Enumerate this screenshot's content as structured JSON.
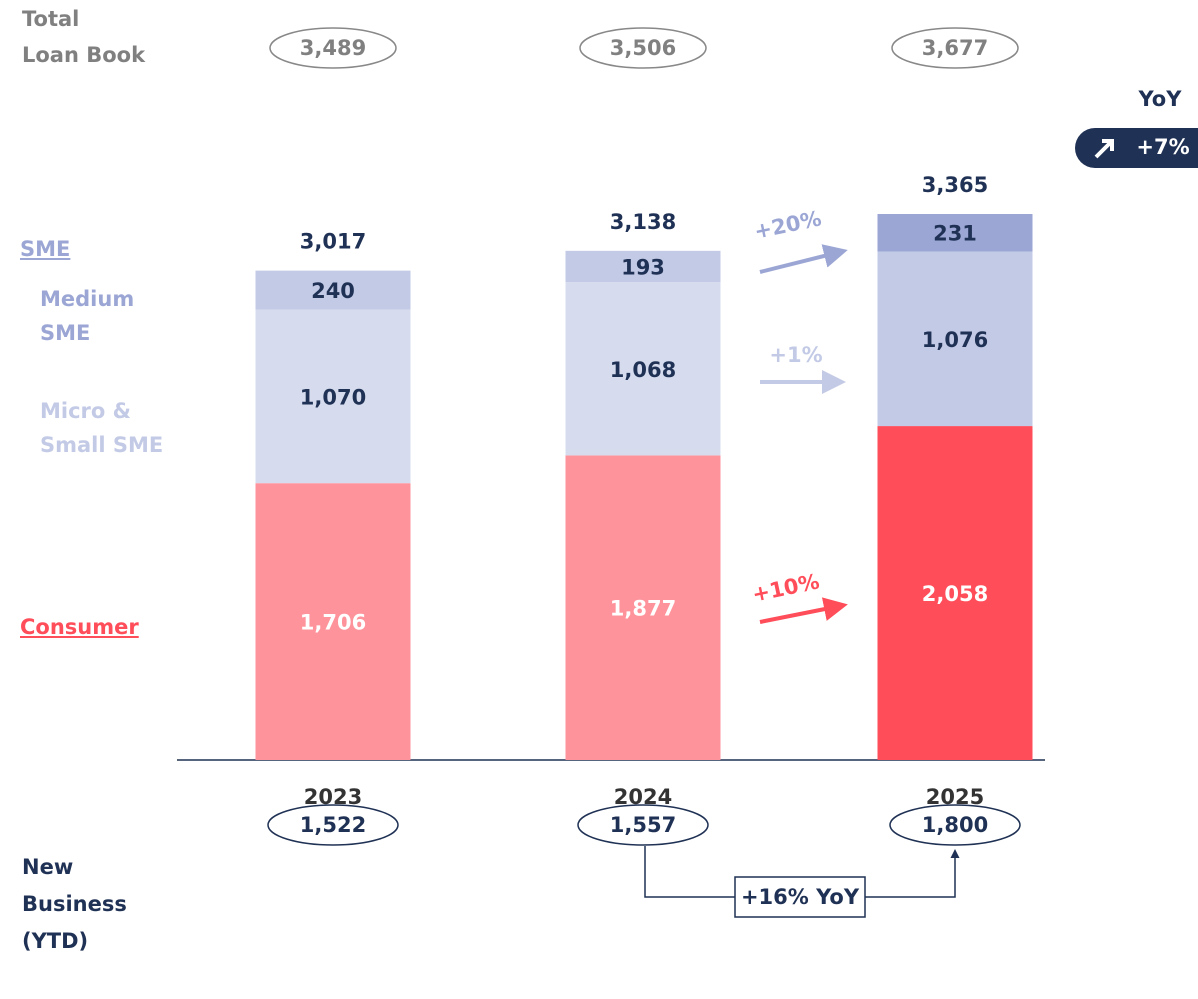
{
  "chart_data": {
    "type": "stacked_bar",
    "categories": [
      "2023",
      "2024",
      "2025"
    ],
    "series": [
      {
        "name": "Consumer",
        "color": "#ff4d5a",
        "colors": [
          "#ff939b",
          "#ff939b",
          "#ff4d5a"
        ],
        "label_color": "#ffffff",
        "values": [
          1706,
          1877,
          2058
        ],
        "value_labels": [
          "1,706",
          "1,877",
          "2,058"
        ]
      },
      {
        "name": "Micro & Small SME",
        "color": "#c3cae6",
        "colors": [
          "#d6dcee",
          "#d6dcee",
          "#c3cae6"
        ],
        "label_color": "#1f3154",
        "values": [
          1070,
          1068,
          1076
        ],
        "value_labels": [
          "1,070",
          "1,068",
          "1,076"
        ]
      },
      {
        "name": "Medium SME",
        "color": "#9ba6d4",
        "colors": [
          "#c3cae6",
          "#c3cae6",
          "#9ba6d4"
        ],
        "label_color": "#1f3154",
        "values": [
          240,
          193,
          231
        ],
        "value_labels": [
          "240",
          "193",
          "231"
        ]
      }
    ],
    "totals": [
      "3,017",
      "3,138",
      "3,365"
    ],
    "group_label": "SME",
    "growth": [
      {
        "label": "+20%",
        "color": "#9ba6d4"
      },
      {
        "label": "+1%",
        "color": "#c3cae6"
      },
      {
        "label": "+10%",
        "color": "#ff4d5a"
      }
    ],
    "total_loan_book": {
      "label_lines": [
        "Total",
        "Loan Book"
      ],
      "values": [
        "3,489",
        "3,506",
        "3,677"
      ]
    },
    "yoy": {
      "title": "YoY",
      "value": "+7%"
    },
    "new_business": {
      "label_lines": [
        "New",
        "Business",
        "(YTD)"
      ],
      "values": [
        "1,522",
        "1,557",
        "1,800"
      ],
      "change": "+16% YoY"
    }
  }
}
